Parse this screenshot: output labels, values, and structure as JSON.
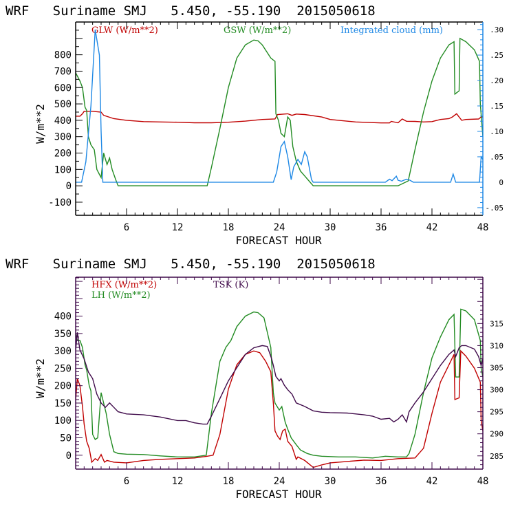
{
  "chart_data": [
    {
      "type": "line",
      "title": "WRF   Suriname SMJ   5.450, -55.190  2015050618",
      "xlabel": "FORECAST HOUR",
      "ylabel": "W/m**2",
      "xlim": [
        0,
        48
      ],
      "ylim": [
        -180,
        1000
      ],
      "xticks": [
        6,
        12,
        18,
        24,
        30,
        36,
        42,
        48
      ],
      "yticks": [
        -100,
        0,
        100,
        200,
        300,
        400,
        500,
        600,
        700,
        800
      ],
      "ytick_labels": [
        "-100",
        "0",
        "100",
        "200",
        "300",
        "400",
        "500",
        "600",
        "700",
        "800"
      ],
      "y2label": "Integrated cloud (mm)",
      "y2lim": [
        -0.065,
        0.315
      ],
      "y2ticks": [
        -0.05,
        0,
        0.05,
        0.1,
        0.15,
        0.2,
        0.25,
        0.3
      ],
      "y2tick_labels": [
        "-.05",
        "0",
        ".05",
        ".10",
        ".15",
        ".20",
        ".25",
        ".30"
      ],
      "grid": false,
      "legend": [
        {
          "name": "GLW (W/m**2)",
          "color": "#c00000",
          "position": "top-left"
        },
        {
          "name": "GSW (W/m**2)",
          "color": "#228b22",
          "position": "top-center"
        },
        {
          "name": "Integrated cloud (mm)",
          "color": "#1e88e5",
          "position": "top-right"
        }
      ],
      "series": [
        {
          "name": "GLW",
          "axis": "left",
          "color": "#c00000",
          "x": [
            0,
            0.5,
            0.8,
            1.0,
            2.0,
            3.0,
            3.3,
            4.5,
            6,
            8,
            10,
            12,
            14,
            16,
            18,
            20,
            22,
            23.5,
            23.8,
            25,
            25.5,
            26,
            27,
            29,
            30,
            31,
            33,
            36,
            37,
            37.2,
            38,
            38.5,
            39,
            40,
            41,
            42,
            43,
            44,
            44.4,
            44.9,
            45.5,
            46,
            47.5,
            47.8,
            48
          ],
          "y": [
            425,
            425,
            440,
            455,
            455,
            450,
            430,
            410,
            400,
            392,
            390,
            388,
            385,
            385,
            388,
            395,
            405,
            408,
            435,
            440,
            430,
            438,
            435,
            420,
            405,
            400,
            390,
            384,
            384,
            393,
            385,
            408,
            394,
            393,
            390,
            392,
            405,
            410,
            420,
            440,
            400,
            405,
            408,
            420,
            420
          ]
        },
        {
          "name": "GSW",
          "axis": "left",
          "color": "#228b22",
          "x": [
            0,
            0.5,
            0.8,
            1.1,
            1.3,
            1.5,
            1.8,
            2.2,
            2.5,
            2.8,
            3.0,
            3.3,
            3.7,
            4.0,
            4.3,
            4.7,
            5.0,
            15.5,
            16,
            17,
            18,
            19,
            20,
            21,
            21.5,
            22,
            23,
            23.5,
            23.6,
            23.9,
            24.2,
            24.6,
            25,
            25.3,
            25.6,
            26,
            26.5,
            27,
            27.5,
            28,
            28.2,
            38,
            39.2,
            40,
            41,
            42,
            43,
            44,
            44.6,
            44.7,
            45.2,
            45.3,
            46,
            47,
            47.6,
            47.7,
            48
          ],
          "y": [
            690,
            640,
            600,
            480,
            460,
            300,
            250,
            220,
            100,
            70,
            50,
            200,
            130,
            170,
            100,
            40,
            0,
            0,
            110,
            350,
            600,
            780,
            860,
            890,
            885,
            860,
            780,
            760,
            440,
            400,
            320,
            300,
            420,
            400,
            240,
            150,
            90,
            60,
            30,
            0,
            0,
            0,
            30,
            220,
            450,
            640,
            780,
            860,
            880,
            560,
            580,
            900,
            880,
            830,
            760,
            500,
            300
          ],
          "note": "clipped at 0 between hours 5 and 15.5 and between 28 and 39"
        },
        {
          "name": "Integrated cloud",
          "axis": "right",
          "color": "#1e88e5",
          "x": [
            0,
            0.7,
            1.2,
            1.8,
            2.3,
            2.8,
            3.0,
            3.2,
            4.0,
            23.3,
            23.7,
            24.2,
            24.6,
            25.0,
            25.4,
            25.7,
            26.2,
            26.6,
            27,
            27.3,
            27.8,
            28.0,
            36.5,
            37,
            37.3,
            37.8,
            38,
            38.4,
            39.0,
            39.4,
            39.8,
            44.2,
            44.5,
            44.8,
            47.6,
            47.8,
            48
          ],
          "y": [
            0.0,
            0.0,
            0.04,
            0.15,
            0.3,
            0.25,
            0.1,
            0.0,
            0.0,
            0.0,
            0.02,
            0.07,
            0.08,
            0.05,
            0.005,
            0.03,
            0.045,
            0.035,
            0.06,
            0.05,
            0.005,
            0.0,
            0.0,
            0.006,
            0.003,
            0.012,
            0.004,
            0.002,
            0.006,
            0.004,
            0.0,
            0.0,
            0.016,
            0.0,
            0.0,
            0.05,
            0.045
          ]
        }
      ]
    },
    {
      "type": "line",
      "title": "WRF   Suriname SMJ   5.450, -55.190  2015050618",
      "xlabel": "FORECAST HOUR",
      "ylabel": "W/m**2",
      "xlim": [
        0,
        48
      ],
      "ylim": [
        -40,
        512
      ],
      "xticks": [
        6,
        12,
        18,
        24,
        30,
        36,
        42,
        48
      ],
      "yticks": [
        0,
        50,
        100,
        150,
        200,
        250,
        300,
        350,
        400
      ],
      "ytick_labels": [
        "0",
        "50",
        "100",
        "150",
        "200",
        "250",
        "300",
        "350",
        "400"
      ],
      "y2label": "TSK (K)",
      "y2lim": [
        282.0,
        325.5
      ],
      "y2ticks": [
        285,
        290,
        295,
        300,
        305,
        310,
        315
      ],
      "y2tick_labels": [
        "285",
        "290",
        "295",
        "300",
        "305",
        "310",
        "315"
      ],
      "grid": false,
      "legend": [
        {
          "name": "HFX (W/m**2)",
          "color": "#c00000",
          "position": "top-left"
        },
        {
          "name": "LH  (W/m**2)",
          "color": "#228b22",
          "position": "top-left"
        },
        {
          "name": "TSK (K)",
          "color": "#3f0a4a",
          "position": "top-center"
        }
      ],
      "series": [
        {
          "name": "HFX",
          "axis": "left",
          "color": "#c00000",
          "x": [
            0,
            0.2,
            0.5,
            0.8,
            1.0,
            1.3,
            1.6,
            1.9,
            2.3,
            2.6,
            3.0,
            3.4,
            3.7,
            4.5,
            6,
            8,
            10,
            12,
            14,
            15.5,
            16.2,
            17,
            18,
            19,
            20,
            21,
            21.7,
            22.4,
            23,
            23.3,
            23.5,
            23.8,
            24.1,
            24.4,
            24.7,
            25.0,
            25.5,
            26,
            26.2,
            27,
            28,
            29,
            30,
            32,
            34,
            36,
            38,
            40,
            41,
            42,
            43,
            44,
            44.6,
            44.7,
            45.2,
            45.4,
            46,
            47,
            47.7,
            47.8,
            48.0
          ],
          "y": [
            160,
            220,
            200,
            140,
            90,
            40,
            20,
            -20,
            -10,
            -15,
            2,
            -20,
            -15,
            -20,
            -22,
            -15,
            -12,
            -10,
            -8,
            -3,
            0,
            60,
            190,
            260,
            290,
            300,
            295,
            270,
            240,
            150,
            70,
            55,
            45,
            70,
            75,
            40,
            25,
            -12,
            -5,
            -15,
            -35,
            -28,
            -22,
            -18,
            -14,
            -15,
            -10,
            -8,
            20,
            120,
            210,
            260,
            290,
            160,
            165,
            300,
            285,
            250,
            210,
            100,
            70
          ]
        },
        {
          "name": "LH",
          "axis": "left",
          "color": "#228b22",
          "x": [
            0,
            0.2,
            0.5,
            0.8,
            1.1,
            1.3,
            1.6,
            1.8,
            2.0,
            2.3,
            2.6,
            3.0,
            3.3,
            3.6,
            4.0,
            4.5,
            5.0,
            6,
            8,
            10,
            12,
            14,
            15.4,
            16,
            17,
            17.7,
            18.3,
            19,
            20,
            21,
            21.5,
            22.2,
            23,
            23.3,
            23.5,
            24.0,
            24.3,
            24.7,
            25,
            25.4,
            26,
            26.5,
            27.3,
            28,
            29,
            31,
            33,
            35,
            36.5,
            38,
            39.0,
            39.3,
            40,
            41,
            42,
            43,
            44,
            44.6,
            44.8,
            45.2,
            45.4,
            46,
            47,
            47.7,
            47.8,
            48
          ],
          "y": [
            350,
            330,
            330,
            310,
            260,
            245,
            200,
            185,
            60,
            45,
            50,
            180,
            150,
            120,
            60,
            10,
            5,
            3,
            2,
            -2,
            -5,
            -5,
            0,
            120,
            270,
            310,
            330,
            370,
            400,
            412,
            410,
            395,
            310,
            180,
            150,
            130,
            140,
            95,
            75,
            50,
            30,
            15,
            5,
            0,
            -3,
            -5,
            -5,
            -8,
            -3,
            -5,
            -5,
            5,
            60,
            180,
            280,
            340,
            390,
            405,
            225,
            225,
            420,
            415,
            390,
            330,
            250,
            225
          ]
        },
        {
          "name": "TSK",
          "axis": "right",
          "color": "#3f0a4a",
          "x": [
            0,
            0.2,
            0.5,
            1.0,
            1.5,
            2.0,
            2.5,
            3.0,
            3.5,
            4.0,
            4.5,
            5.0,
            6,
            8,
            10,
            12,
            13,
            14,
            15,
            15.5,
            16,
            17,
            18,
            19,
            20,
            21,
            22,
            22.6,
            23.1,
            23.3,
            23.6,
            24,
            24.2,
            24.6,
            25.0,
            25.5,
            26,
            27,
            28,
            29,
            30,
            32,
            34,
            35,
            36,
            37,
            37.5,
            38,
            38.5,
            39,
            39.3,
            40,
            41,
            42,
            43,
            44,
            44.6,
            44.8,
            45.2,
            45.5,
            46,
            47,
            47.5,
            47.8,
            48
          ],
          "y": [
            309,
            313,
            309,
            307,
            304,
            302.5,
            299,
            297,
            296,
            297,
            296,
            295,
            294.5,
            294.3,
            293.8,
            293,
            293,
            292.5,
            292.2,
            292.2,
            294,
            298,
            302,
            305,
            308,
            309.5,
            310,
            309.8,
            307,
            305.5,
            303,
            302,
            302.5,
            301,
            300,
            299,
            297,
            296.2,
            295.2,
            294.9,
            294.8,
            294.7,
            294.3,
            294.0,
            293.3,
            293.5,
            292.7,
            293.3,
            294.3,
            292.7,
            295,
            297,
            299.5,
            302.5,
            305.5,
            308,
            309,
            307.5,
            309.5,
            310,
            310,
            309.2,
            307.5,
            305.5,
            307
          ]
        }
      ]
    }
  ]
}
